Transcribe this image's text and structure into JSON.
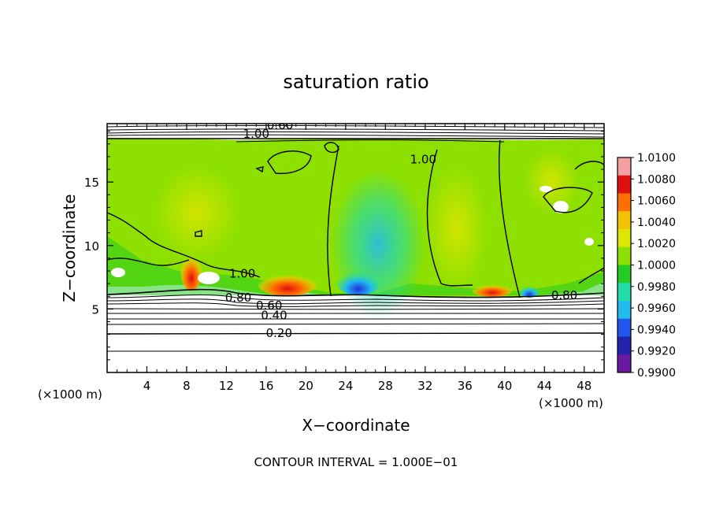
{
  "chart_data": {
    "type": "heatmap",
    "title": "saturation ratio",
    "xlabel": "X−coordinate",
    "ylabel": "Z−coordinate",
    "x_unit": "(×1000 m)",
    "z_unit": "(×1000 m)",
    "xlim": [
      0,
      50
    ],
    "ylim": [
      0,
      19.6
    ],
    "x_ticks": [
      "4",
      "8",
      "12",
      "16",
      "20",
      "24",
      "28",
      "32",
      "36",
      "40",
      "44",
      "48"
    ],
    "y_ticks": [
      "5",
      "10",
      "15"
    ],
    "footer": "CONTOUR INTERVAL = 1.000E−01",
    "colorbar": {
      "levels": [
        "1.0100",
        "1.0080",
        "1.0060",
        "1.0040",
        "1.0020",
        "1.0000",
        "0.9980",
        "0.9960",
        "0.9940",
        "0.9920",
        "0.9900"
      ],
      "colors": [
        "#f4a0a0",
        "#e01010",
        "#ff7000",
        "#f2c200",
        "#dde600",
        "#8ee000",
        "#22cc22",
        "#22ddaa",
        "#22bbee",
        "#2255ee",
        "#2222aa",
        "#6a1aa0"
      ]
    },
    "contour_labels": [
      {
        "text": "0.60",
        "x": 17.4,
        "z": 19.3
      },
      {
        "text": "1.00",
        "x": 15.0,
        "z": 18.6
      },
      {
        "text": "1.00",
        "x": 31.8,
        "z": 16.6
      },
      {
        "text": "1.00",
        "x": 13.6,
        "z": 7.6
      },
      {
        "text": "0.80",
        "x": 13.2,
        "z": 5.7
      },
      {
        "text": "0.60",
        "x": 16.3,
        "z": 5.1
      },
      {
        "text": "0.40",
        "x": 16.8,
        "z": 4.3
      },
      {
        "text": "0.20",
        "x": 17.3,
        "z": 2.9
      },
      {
        "text": "0.80",
        "x": 46.0,
        "z": 5.9
      }
    ],
    "contour_levels_below_cloud_base": [
      0.2,
      0.4,
      0.6,
      0.8,
      0.9
    ],
    "approx_fields": {
      "supersaturated_cores": [
        {
          "x": 8.0,
          "z": 8.0,
          "value": 1.0066
        },
        {
          "x": 18.5,
          "z": 6.9,
          "value": 1.005
        },
        {
          "x": 38.5,
          "z": 6.6,
          "value": 1.0045
        },
        {
          "x": 35.0,
          "z": 11.5,
          "value": 1.002
        }
      ],
      "subsaturated_cores": [
        {
          "x": 27.0,
          "z": 8.5,
          "value": 0.9955
        },
        {
          "x": 25.0,
          "z": 6.8,
          "value": 0.9935
        },
        {
          "x": 42.5,
          "z": 6.5,
          "value": 0.9935
        }
      ],
      "cloud_base_z": 6.1,
      "cloud_top_z": 18.7
    }
  }
}
